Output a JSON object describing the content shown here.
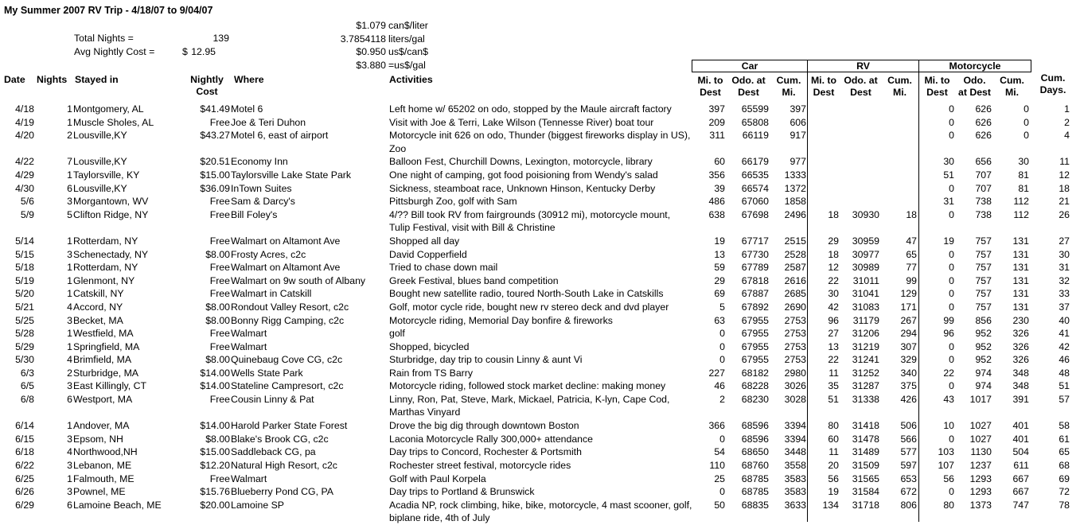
{
  "title": "My Summer 2007 RV Trip - 4/18/07 to 9/04/07",
  "summary": {
    "total_nights_label": "Total Nights =",
    "total_nights": "139",
    "avg_cost_label": "Avg Nightly Cost =",
    "avg_cost_currency": "$",
    "avg_cost": "12.95"
  },
  "conversions": [
    {
      "value": "$1.079",
      "unit": "can$/liter"
    },
    {
      "value": "3.7854118",
      "unit": "liters/gal"
    },
    {
      "value": "$0.950",
      "unit": "us$/can$"
    },
    {
      "value": "$3.880",
      "unit": "=us$/gal"
    }
  ],
  "headers": {
    "date": "Date",
    "nights": "Nights",
    "stayed": "Stayed in",
    "cost_line1": "Nightly",
    "cost_line2": "Cost",
    "where": "Where",
    "activities": "Activities",
    "groups": {
      "car": "Car",
      "rv": "RV",
      "moto": "Motorcycle"
    },
    "car": [
      [
        "Mi. to",
        "Dest"
      ],
      [
        "Odo. at",
        "Dest"
      ],
      [
        "Cum.",
        "Mi."
      ]
    ],
    "rv": [
      [
        "Mi. to",
        "Dest"
      ],
      [
        "Odo. at",
        "Dest"
      ],
      [
        "Cum.",
        "Mi."
      ]
    ],
    "moto": [
      [
        "Mi. to",
        "Dest"
      ],
      [
        "Odo.",
        "at Dest"
      ],
      [
        "Cum.",
        "Mi."
      ]
    ],
    "days": [
      "Cum.",
      "Days."
    ]
  },
  "rows": [
    {
      "date": "4/18",
      "nights": "1",
      "stayed": "Montgomery, AL",
      "cost": "$41.49",
      "where": "Motel 6",
      "activities": "Left home w/ 65202 on odo, stopped by the Maule aircraft factory",
      "car": [
        "397",
        "65599",
        "397"
      ],
      "rv": [
        "",
        "",
        ""
      ],
      "moto": [
        "0",
        "626",
        "0"
      ],
      "days": "1"
    },
    {
      "date": "4/19",
      "nights": "1",
      "stayed": "Muscle Sholes, AL",
      "cost": "Free",
      "where": "Joe & Teri Duhon",
      "activities": "Visit with Joe & Terri, Lake Wilson (Tennesse River) boat tour",
      "car": [
        "209",
        "65808",
        "606"
      ],
      "rv": [
        "",
        "",
        ""
      ],
      "moto": [
        "0",
        "626",
        "0"
      ],
      "days": "2"
    },
    {
      "date": "4/20",
      "nights": "2",
      "stayed": "Lousville,KY",
      "cost": "$43.27",
      "where": "Motel 6, east of airport",
      "activities": "Motorcycle init 626 on odo, Thunder (biggest fireworks display in US), Zoo",
      "wrap": true,
      "car": [
        "311",
        "66119",
        "917"
      ],
      "rv": [
        "",
        "",
        ""
      ],
      "moto": [
        "0",
        "626",
        "0"
      ],
      "days": "4"
    },
    {
      "date": "4/22",
      "nights": "7",
      "stayed": "Lousville,KY",
      "cost": "$20.51",
      "where": "Economy Inn",
      "activities": "Balloon Fest, Churchill Downs, Lexington, motorcycle, library",
      "car": [
        "60",
        "66179",
        "977"
      ],
      "rv": [
        "",
        "",
        ""
      ],
      "moto": [
        "30",
        "656",
        "30"
      ],
      "days": "11"
    },
    {
      "date": "4/29",
      "nights": "1",
      "stayed": "Taylorsville, KY",
      "cost": "$15.00",
      "where": "Taylorsville Lake State Park",
      "activities": "One night of camping, got food poisioning from Wendy's salad",
      "car": [
        "356",
        "66535",
        "1333"
      ],
      "rv": [
        "",
        "",
        ""
      ],
      "moto": [
        "51",
        "707",
        "81"
      ],
      "days": "12"
    },
    {
      "date": "4/30",
      "nights": "6",
      "stayed": "Lousville,KY",
      "cost": "$36.09",
      "where": "InTown Suites",
      "activities": "Sickness, steamboat race, Unknown Hinson, Kentucky Derby",
      "car": [
        "39",
        "66574",
        "1372"
      ],
      "rv": [
        "",
        "",
        ""
      ],
      "moto": [
        "0",
        "707",
        "81"
      ],
      "days": "18"
    },
    {
      "date": "5/6",
      "nights": "3",
      "stayed": " Morgantown, WV",
      "cost": "Free",
      "where": "Sam & Darcy's",
      "activities": "Pittsburgh Zoo, golf with Sam",
      "car": [
        "486",
        "67060",
        "1858"
      ],
      "rv": [
        "",
        "",
        ""
      ],
      "moto": [
        "31",
        "738",
        "112"
      ],
      "days": "21"
    },
    {
      "date": "5/9",
      "nights": "5",
      "stayed": "Clifton Ridge, NY",
      "cost": "Free",
      "where": "Bill Foley's",
      "activities": "4/?? Bill took RV from fairgrounds (30912 mi), motorcycle mount, Tulip Festival, visit with Bill & Christine",
      "wrap": true,
      "car": [
        "638",
        "67698",
        "2496"
      ],
      "rv": [
        "18",
        "30930",
        "18"
      ],
      "moto": [
        "0",
        "738",
        "112"
      ],
      "days": "26"
    },
    {
      "date": "5/14",
      "nights": "1",
      "stayed": "Rotterdam, NY",
      "cost": "Free",
      "where": "Walmart on Altamont Ave",
      "activities": "Shopped all day",
      "car": [
        "19",
        "67717",
        "2515"
      ],
      "rv": [
        "29",
        "30959",
        "47"
      ],
      "moto": [
        "19",
        "757",
        "131"
      ],
      "days": "27"
    },
    {
      "date": "5/15",
      "nights": "3",
      "stayed": "Schenectady, NY",
      "cost": "$8.00",
      "where": "Frosty Acres, c2c",
      "activities": "David Copperfield",
      "car": [
        "13",
        "67730",
        "2528"
      ],
      "rv": [
        "18",
        "30977",
        "65"
      ],
      "moto": [
        "0",
        "757",
        "131"
      ],
      "days": "30"
    },
    {
      "date": "5/18",
      "nights": "1",
      "stayed": "Rotterdam, NY",
      "cost": "Free",
      "where": "Walmart on Altamont Ave",
      "activities": "Tried to chase down mail",
      "car": [
        "59",
        "67789",
        "2587"
      ],
      "rv": [
        "12",
        "30989",
        "77"
      ],
      "moto": [
        "0",
        "757",
        "131"
      ],
      "days": "31"
    },
    {
      "date": "5/19",
      "nights": "1",
      "stayed": "Glenmont, NY",
      "cost": "Free",
      "where": "Walmart on 9w south of Albany",
      "activities": "Greek Festival, blues band competition",
      "car": [
        "29",
        "67818",
        "2616"
      ],
      "rv": [
        "22",
        "31011",
        "99"
      ],
      "moto": [
        "0",
        "757",
        "131"
      ],
      "days": "32"
    },
    {
      "date": "5/20",
      "nights": "1",
      "stayed": "Catskill, NY",
      "cost": "Free",
      "where": "Walmart in Catskill",
      "activities": "Bought new satellite radio, toured North-South Lake in Catskills",
      "car": [
        "69",
        "67887",
        "2685"
      ],
      "rv": [
        "30",
        "31041",
        "129"
      ],
      "moto": [
        "0",
        "757",
        "131"
      ],
      "days": "33"
    },
    {
      "date": "5/21",
      "nights": "4",
      "stayed": "Accord, NY",
      "cost": "$8.00",
      "where": "Rondout Valley Resort, c2c",
      "activities": "Golf, motor cycle ride, bought new rv stereo deck and dvd player",
      "car": [
        "5",
        "67892",
        "2690"
      ],
      "rv": [
        "42",
        "31083",
        "171"
      ],
      "moto": [
        "0",
        "757",
        "131"
      ],
      "days": "37"
    },
    {
      "date": "5/25",
      "nights": "3",
      "stayed": "Becket, MA",
      "cost": "$8.00",
      "where": "Bonny Rigg Camping, c2c",
      "activities": "Motorcycle riding, Memorial Day bonfire & fireworks",
      "car": [
        "63",
        "67955",
        "2753"
      ],
      "rv": [
        "96",
        "31179",
        "267"
      ],
      "moto": [
        "99",
        "856",
        "230"
      ],
      "days": "40"
    },
    {
      "date": "5/28",
      "nights": "1",
      "stayed": "Westfield, MA",
      "cost": "Free",
      "where": "Walmart",
      "activities": "golf",
      "car": [
        "0",
        "67955",
        "2753"
      ],
      "rv": [
        "27",
        "31206",
        "294"
      ],
      "moto": [
        "96",
        "952",
        "326"
      ],
      "days": "41"
    },
    {
      "date": "5/29",
      "nights": "1",
      "stayed": "Springfield, MA",
      "cost": "Free",
      "where": "Walmart",
      "activities": "Shopped, bicycled",
      "car": [
        "0",
        "67955",
        "2753"
      ],
      "rv": [
        "13",
        "31219",
        "307"
      ],
      "moto": [
        "0",
        "952",
        "326"
      ],
      "days": "42"
    },
    {
      "date": "5/30",
      "nights": "4",
      "stayed": "Brimfield, MA",
      "cost": "$8.00",
      "where": "Quinebaug Cove CG, c2c",
      "activities": "Sturbridge, day trip to cousin Linny & aunt Vi",
      "car": [
        "0",
        "67955",
        "2753"
      ],
      "rv": [
        "22",
        "31241",
        "329"
      ],
      "moto": [
        "0",
        "952",
        "326"
      ],
      "days": "46"
    },
    {
      "date": "6/3",
      "nights": "2",
      "stayed": "Sturbridge, MA",
      "cost": "$14.00",
      "where": "Wells State Park",
      "activities": "Rain from TS Barry",
      "car": [
        "227",
        "68182",
        "2980"
      ],
      "rv": [
        "11",
        "31252",
        "340"
      ],
      "moto": [
        "22",
        "974",
        "348"
      ],
      "days": "48"
    },
    {
      "date": "6/5",
      "nights": "3",
      "stayed": "East Killingly, CT",
      "cost": "$14.00",
      "where": "Stateline Campresort, c2c",
      "activities": "Motorcycle riding, followed stock market decline: making money",
      "car": [
        "46",
        "68228",
        "3026"
      ],
      "rv": [
        "35",
        "31287",
        "375"
      ],
      "moto": [
        "0",
        "974",
        "348"
      ],
      "days": "51"
    },
    {
      "date": "6/8",
      "nights": "6",
      "stayed": "Westport, MA",
      "cost": "Free",
      "where": "Cousin Linny & Pat",
      "activities": "Linny, Ron, Pat, Steve, Mark, Mickael, Patricia, K-lyn, Cape Cod, Marthas Vinyard",
      "wrap": true,
      "car": [
        "2",
        "68230",
        "3028"
      ],
      "rv": [
        "51",
        "31338",
        "426"
      ],
      "moto": [
        "43",
        "1017",
        "391"
      ],
      "days": "57"
    },
    {
      "date": "6/14",
      "nights": "1",
      "stayed": "Andover, MA",
      "cost": "$14.00",
      "where": "Harold Parker State Forest",
      "activities": "Drove the big dig through downtown Boston",
      "car": [
        "366",
        "68596",
        "3394"
      ],
      "rv": [
        "80",
        "31418",
        "506"
      ],
      "moto": [
        "10",
        "1027",
        "401"
      ],
      "days": "58"
    },
    {
      "date": "6/15",
      "nights": "3",
      "stayed": "Epsom, NH",
      "cost": "$8.00",
      "where": "Blake's Brook CG, c2c",
      "activities": "Laconia Motorcycle Rally 300,000+ attendance",
      "car": [
        "0",
        "68596",
        "3394"
      ],
      "rv": [
        "60",
        "31478",
        "566"
      ],
      "moto": [
        "0",
        "1027",
        "401"
      ],
      "days": "61"
    },
    {
      "date": "6/18",
      "nights": "4",
      "stayed": "Northwood,NH",
      "cost": "$15.00",
      "where": "Saddleback CG, pa",
      "activities": "Day trips to Concord, Rochester & Portsmith",
      "car": [
        "54",
        "68650",
        "3448"
      ],
      "rv": [
        "11",
        "31489",
        "577"
      ],
      "moto": [
        "103",
        "1130",
        "504"
      ],
      "days": "65"
    },
    {
      "date": "6/22",
      "nights": "3",
      "stayed": "Lebanon, ME",
      "cost": "$12.20",
      "where": "Natural High Resort, c2c",
      "activities": "Rochester street festival, motorcycle rides",
      "car": [
        "110",
        "68760",
        "3558"
      ],
      "rv": [
        "20",
        "31509",
        "597"
      ],
      "moto": [
        "107",
        "1237",
        "611"
      ],
      "days": "68"
    },
    {
      "date": "6/25",
      "nights": "1",
      "stayed": "Falmouth, ME",
      "cost": "Free",
      "where": "Walmart",
      "activities": "Golf with Paul Korpela",
      "car": [
        "25",
        "68785",
        "3583"
      ],
      "rv": [
        "56",
        "31565",
        "653"
      ],
      "moto": [
        "56",
        "1293",
        "667"
      ],
      "days": "69"
    },
    {
      "date": "6/26",
      "nights": "3",
      "stayed": "Pownel, ME",
      "cost": "$15.76",
      "where": "Blueberry Pond CG, PA",
      "activities": "Day trips to Portland & Brunswick",
      "car": [
        "0",
        "68785",
        "3583"
      ],
      "rv": [
        "19",
        "31584",
        "672"
      ],
      "moto": [
        "0",
        "1293",
        "667"
      ],
      "days": "72"
    },
    {
      "date": "6/29",
      "nights": "6",
      "stayed": "Lamoine Beach, ME",
      "cost": "$20.00",
      "where": "Lamoine SP",
      "activities": "Acadia NP, rock climbing, hike, bike, motorcycle, 4 mast scooner, golf, biplane ride, 4th of July",
      "wrap": true,
      "car": [
        "50",
        "68835",
        "3633"
      ],
      "rv": [
        "134",
        "31718",
        "806"
      ],
      "moto": [
        "80",
        "1373",
        "747"
      ],
      "days": "78"
    }
  ]
}
